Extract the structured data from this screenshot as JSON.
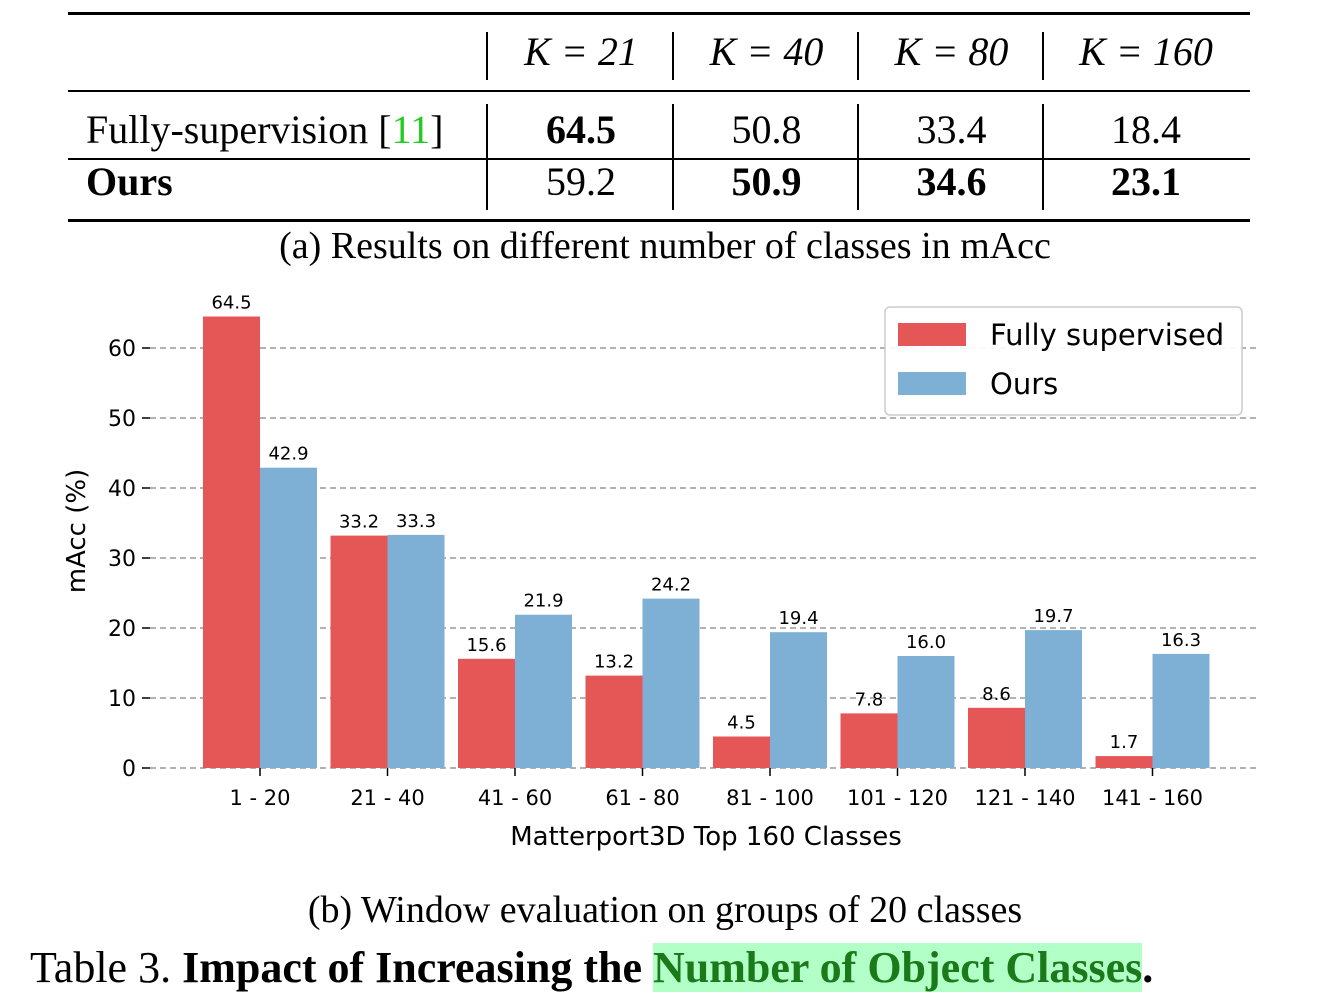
{
  "table_a": {
    "columns": [
      "K = 21",
      "K = 40",
      "K = 80",
      "K = 160"
    ],
    "rows": [
      {
        "label": "Fully-supervision ",
        "cite": "11",
        "values": [
          "64.5",
          "50.8",
          "33.4",
          "18.4"
        ],
        "bold": [
          true,
          false,
          false,
          false
        ]
      },
      {
        "label": "Ours",
        "cite": "",
        "values": [
          "59.2",
          "50.9",
          "34.6",
          "23.1"
        ],
        "bold": [
          false,
          true,
          true,
          true
        ]
      }
    ],
    "caption": "(a) Results on different number of classes in mAcc"
  },
  "chart_data": {
    "type": "bar",
    "categories": [
      "1 - 20",
      "21 - 40",
      "41 - 60",
      "61 - 80",
      "81 - 100",
      "101 - 120",
      "121 - 140",
      "141 - 160"
    ],
    "series": [
      {
        "name": "Fully supervised",
        "color": "#e45756",
        "values": [
          64.5,
          33.2,
          15.6,
          13.2,
          4.5,
          7.8,
          8.6,
          1.7
        ],
        "labels": [
          "64.5",
          "33.2",
          "15.6",
          "13.2",
          "4.5",
          "7.8",
          "8.6",
          "1.7"
        ]
      },
      {
        "name": "Ours",
        "color": "#7eb0d5",
        "values": [
          42.9,
          33.3,
          21.9,
          24.2,
          19.4,
          16.0,
          19.7,
          16.3
        ],
        "labels": [
          "42.9",
          "33.3",
          "21.9",
          "24.2",
          "19.4",
          "16.0",
          "19.7",
          "16.3"
        ]
      }
    ],
    "xlabel": "Matterport3D Top 160 Classes",
    "ylabel": "mAcc (%)",
    "ylim": [
      0,
      65
    ],
    "yticks": [
      0,
      10,
      20,
      30,
      40,
      50,
      60
    ],
    "grid": "horizontal-dashed",
    "legend": "top-right"
  },
  "chart_caption": "(b) Window evaluation on groups of 20 classes",
  "table_caption": {
    "prefix": "Table 3.  ",
    "bold_text": "Impact of Increasing the ",
    "highlight_text": "Number of Object Classes",
    "suffix": "."
  }
}
